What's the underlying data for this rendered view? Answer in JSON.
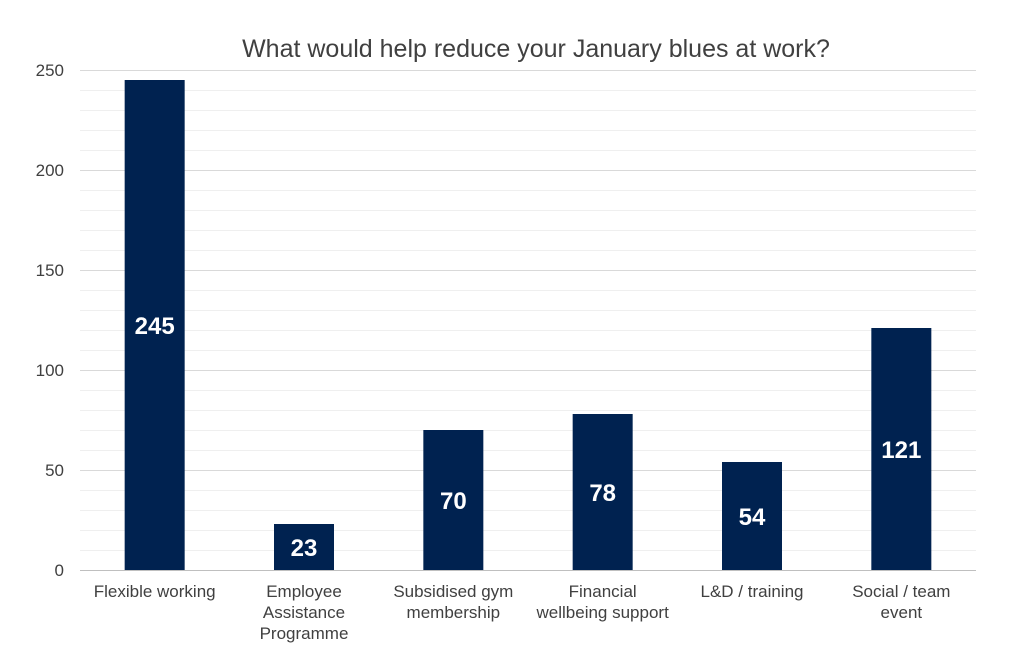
{
  "chart_data": {
    "type": "bar",
    "title": "What would help reduce your January blues at work?",
    "categories": [
      [
        "Flexible working"
      ],
      [
        "Employee",
        "Assistance",
        "Programme"
      ],
      [
        "Subsidised gym",
        "membership"
      ],
      [
        "Financial",
        "wellbeing support"
      ],
      [
        "L&D / training"
      ],
      [
        "Social / team",
        "event"
      ]
    ],
    "values": [
      245,
      23,
      70,
      78,
      54,
      121
    ],
    "data_labels": [
      "245",
      "23",
      "70",
      "78",
      "54",
      "121"
    ],
    "ylim": [
      0,
      250
    ],
    "y_ticks": [
      0,
      50,
      100,
      150,
      200,
      250
    ],
    "minor_grid_step": 10,
    "grid": true,
    "bar_color": "#002250",
    "label_color": "#ffffff"
  }
}
